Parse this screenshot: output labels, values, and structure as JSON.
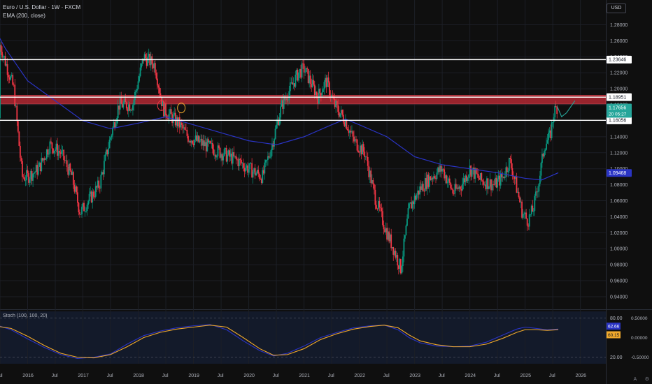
{
  "header": {
    "title": "Euro / U.S. Dollar · 1W · FXCM",
    "indicator": "EMA (200, close)",
    "currency": "USD"
  },
  "colors": {
    "up": "#089981",
    "down": "#f23645",
    "ema": "#2a34c4",
    "zone": "#b22833",
    "stoch_k": "#2a34c4",
    "stoch_d": "#f0a92c",
    "price_label": "#26a69a"
  },
  "chart_data": [
    {
      "type": "candlestick",
      "symbol": "EURUSD",
      "timeframe": "1W",
      "ylim": [
        0.926,
        1.311
      ],
      "x_range": [
        2015.5,
        2026.46
      ],
      "y_ticks": [
        "0.94000",
        "0.96000",
        "0.98000",
        "1.00000",
        "1.02000",
        "1.04000",
        "1.06000",
        "1.08000",
        "1.10000",
        "1.12000",
        "1.14000",
        "1.16000",
        "1.18000",
        "1.20000",
        "1.22000",
        "1.24000",
        "1.26000",
        "1.28000"
      ],
      "x_ticks": [
        {
          "label": "Jul",
          "t": 2015.5
        },
        {
          "label": "2016",
          "t": 2016.0
        },
        {
          "label": "Jul",
          "t": 2016.5
        },
        {
          "label": "2017",
          "t": 2017.0
        },
        {
          "label": "Jul",
          "t": 2017.5
        },
        {
          "label": "2018",
          "t": 2018.0
        },
        {
          "label": "Jul",
          "t": 2018.5
        },
        {
          "label": "2019",
          "t": 2019.0
        },
        {
          "label": "Jul",
          "t": 2019.5
        },
        {
          "label": "2020",
          "t": 2020.0
        },
        {
          "label": "Jul",
          "t": 2020.5
        },
        {
          "label": "2021",
          "t": 2021.0
        },
        {
          "label": "Jul",
          "t": 2021.5
        },
        {
          "label": "2022",
          "t": 2022.0
        },
        {
          "label": "Jul",
          "t": 2022.5
        },
        {
          "label": "2023",
          "t": 2023.0
        },
        {
          "label": "Jul",
          "t": 2023.5
        },
        {
          "label": "2024",
          "t": 2024.0
        },
        {
          "label": "Jul",
          "t": 2024.5
        },
        {
          "label": "2025",
          "t": 2025.0
        },
        {
          "label": "Jul",
          "t": 2025.5
        },
        {
          "label": "2026",
          "t": 2026.0
        }
      ],
      "price_path": [
        [
          2015.35,
          1.295
        ],
        [
          2015.5,
          1.255
        ],
        [
          2015.75,
          1.2
        ],
        [
          2015.9,
          1.09
        ],
        [
          2016.0,
          1.09
        ],
        [
          2016.2,
          1.1
        ],
        [
          2016.4,
          1.13
        ],
        [
          2016.6,
          1.12
        ],
        [
          2016.8,
          1.09
        ],
        [
          2016.95,
          1.045
        ],
        [
          2017.1,
          1.06
        ],
        [
          2017.3,
          1.08
        ],
        [
          2017.5,
          1.14
        ],
        [
          2017.65,
          1.18
        ],
        [
          2017.9,
          1.18
        ],
        [
          2018.1,
          1.24
        ],
        [
          2018.3,
          1.23
        ],
        [
          2018.45,
          1.175
        ],
        [
          2018.75,
          1.155
        ],
        [
          2018.9,
          1.14
        ],
        [
          2019.2,
          1.13
        ],
        [
          2019.5,
          1.12
        ],
        [
          2019.8,
          1.11
        ],
        [
          2020.0,
          1.1
        ],
        [
          2020.25,
          1.09
        ],
        [
          2020.4,
          1.125
        ],
        [
          2020.6,
          1.18
        ],
        [
          2020.9,
          1.22
        ],
        [
          2021.0,
          1.225
        ],
        [
          2021.25,
          1.19
        ],
        [
          2021.4,
          1.21
        ],
        [
          2021.55,
          1.18
        ],
        [
          2021.75,
          1.16
        ],
        [
          2021.9,
          1.135
        ],
        [
          2022.1,
          1.12
        ],
        [
          2022.3,
          1.06
        ],
        [
          2022.5,
          1.02
        ],
        [
          2022.62,
          1.0
        ],
        [
          2022.75,
          0.975
        ],
        [
          2022.9,
          1.05
        ],
        [
          2023.1,
          1.075
        ],
        [
          2023.3,
          1.09
        ],
        [
          2023.5,
          1.1
        ],
        [
          2023.7,
          1.07
        ],
        [
          2023.85,
          1.08
        ],
        [
          2024.0,
          1.1
        ],
        [
          2024.2,
          1.085
        ],
        [
          2024.45,
          1.08
        ],
        [
          2024.6,
          1.09
        ],
        [
          2024.72,
          1.11
        ],
        [
          2024.8,
          1.09
        ],
        [
          2024.95,
          1.045
        ],
        [
          2025.05,
          1.035
        ],
        [
          2025.15,
          1.05
        ],
        [
          2025.25,
          1.085
        ],
        [
          2025.35,
          1.13
        ],
        [
          2025.45,
          1.14
        ],
        [
          2025.52,
          1.17
        ],
        [
          2025.58,
          1.178
        ]
      ],
      "ema_path": [
        [
          2015.3,
          1.288
        ],
        [
          2015.6,
          1.25
        ],
        [
          2016.0,
          1.21
        ],
        [
          2016.5,
          1.185
        ],
        [
          2017.0,
          1.16
        ],
        [
          2017.5,
          1.15
        ],
        [
          2018.0,
          1.157
        ],
        [
          2018.5,
          1.165
        ],
        [
          2019.0,
          1.155
        ],
        [
          2019.5,
          1.145
        ],
        [
          2020.0,
          1.135
        ],
        [
          2020.5,
          1.13
        ],
        [
          2021.0,
          1.14
        ],
        [
          2021.5,
          1.155
        ],
        [
          2021.75,
          1.162
        ],
        [
          2022.0,
          1.155
        ],
        [
          2022.5,
          1.14
        ],
        [
          2023.0,
          1.115
        ],
        [
          2023.5,
          1.105
        ],
        [
          2024.0,
          1.1
        ],
        [
          2024.5,
          1.095
        ],
        [
          2025.0,
          1.088
        ],
        [
          2025.3,
          1.086
        ],
        [
          2025.6,
          1.095
        ]
      ],
      "projection_path": [
        [
          2025.58,
          1.178
        ],
        [
          2025.66,
          1.165
        ],
        [
          2025.75,
          1.17
        ],
        [
          2025.9,
          1.185
        ]
      ],
      "horizontal_levels": [
        {
          "value": 1.23646,
          "label": "1.23646",
          "style": "white-line"
        },
        {
          "value": 1.18951,
          "label": "1.18951",
          "style": "white-line"
        },
        {
          "value": 1.16056,
          "label": "1.16056",
          "style": "white-line"
        }
      ],
      "resistance_zone": [
        1.181,
        1.192
      ],
      "current_price": {
        "value": 1.17656,
        "label": "1.17656",
        "countdown": "20 05:27"
      },
      "ema_value": {
        "value": 1.09468,
        "label": "1.09468"
      },
      "annotations": [
        {
          "type": "circle",
          "t": 2018.42,
          "y": 1.179,
          "color": "#f23645"
        },
        {
          "type": "circle",
          "t": 2018.78,
          "y": 1.176,
          "color": "#f0a92c"
        }
      ]
    },
    {
      "type": "line",
      "title": "Stoch (100, 100, 20)",
      "ylim": [
        10,
        90
      ],
      "y_ticks_left": [
        "20.00",
        "80.00"
      ],
      "y_ticks_right": [
        "0.50000",
        "0.00000",
        "-0.50000"
      ],
      "series": [
        {
          "name": "K",
          "color": "#2a34c4",
          "path": [
            [
              2015.4,
              70
            ],
            [
              2015.7,
              62
            ],
            [
              2016.0,
              48
            ],
            [
              2016.3,
              35
            ],
            [
              2016.6,
              24
            ],
            [
              2016.9,
              18
            ],
            [
              2017.2,
              20
            ],
            [
              2017.5,
              25
            ],
            [
              2017.8,
              40
            ],
            [
              2018.1,
              53
            ],
            [
              2018.4,
              60
            ],
            [
              2018.7,
              65
            ],
            [
              2019.0,
              68
            ],
            [
              2019.3,
              70
            ],
            [
              2019.6,
              62
            ],
            [
              2019.9,
              45
            ],
            [
              2020.2,
              30
            ],
            [
              2020.45,
              22
            ],
            [
              2020.7,
              26
            ],
            [
              2021.0,
              37
            ],
            [
              2021.3,
              50
            ],
            [
              2021.6,
              58
            ],
            [
              2021.9,
              65
            ],
            [
              2022.2,
              68
            ],
            [
              2022.45,
              69
            ],
            [
              2022.7,
              62
            ],
            [
              2022.9,
              50
            ],
            [
              2023.1,
              42
            ],
            [
              2023.4,
              37
            ],
            [
              2023.7,
              36
            ],
            [
              2024.0,
              37
            ],
            [
              2024.3,
              43
            ],
            [
              2024.6,
              54
            ],
            [
              2024.85,
              63
            ],
            [
              2025.0,
              66
            ],
            [
              2025.2,
              64
            ],
            [
              2025.4,
              62
            ],
            [
              2025.6,
              63
            ]
          ]
        },
        {
          "name": "D",
          "color": "#f0a92c",
          "path": [
            [
              2015.4,
              68
            ],
            [
              2015.7,
              64
            ],
            [
              2016.0,
              52
            ],
            [
              2016.3,
              38
            ],
            [
              2016.6,
              26
            ],
            [
              2016.9,
              20
            ],
            [
              2017.2,
              19
            ],
            [
              2017.5,
              24
            ],
            [
              2017.8,
              36
            ],
            [
              2018.1,
              50
            ],
            [
              2018.4,
              58
            ],
            [
              2018.7,
              63
            ],
            [
              2019.0,
              66
            ],
            [
              2019.3,
              69
            ],
            [
              2019.6,
              66
            ],
            [
              2019.9,
              50
            ],
            [
              2020.2,
              33
            ],
            [
              2020.45,
              23
            ],
            [
              2020.7,
              24
            ],
            [
              2021.0,
              33
            ],
            [
              2021.3,
              47
            ],
            [
              2021.6,
              56
            ],
            [
              2021.9,
              63
            ],
            [
              2022.2,
              67
            ],
            [
              2022.45,
              69
            ],
            [
              2022.7,
              65
            ],
            [
              2022.9,
              54
            ],
            [
              2023.1,
              45
            ],
            [
              2023.4,
              39
            ],
            [
              2023.7,
              36
            ],
            [
              2024.0,
              36
            ],
            [
              2024.3,
              40
            ],
            [
              2024.6,
              49
            ],
            [
              2024.85,
              58
            ],
            [
              2025.0,
              62
            ],
            [
              2025.2,
              62
            ],
            [
              2025.4,
              61
            ],
            [
              2025.6,
              62
            ]
          ]
        }
      ],
      "labels": [
        {
          "series": "K",
          "value": 62.66,
          "label": "62.66"
        },
        {
          "series": "D",
          "value": 60.15,
          "label": "60.15"
        }
      ]
    }
  ],
  "toolbar": {
    "a_label": "A",
    "log_label": "⚙"
  }
}
